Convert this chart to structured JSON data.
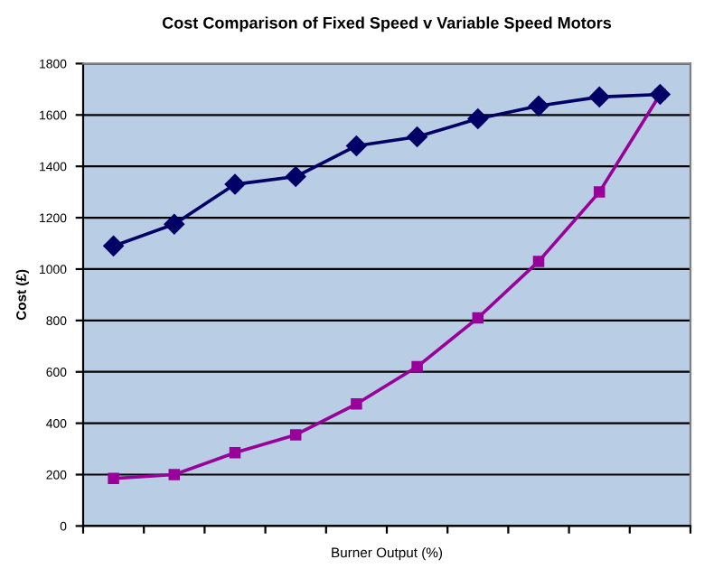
{
  "chart_data": {
    "type": "line",
    "title": "Cost Comparison of Fixed Speed v Variable Speed Motors",
    "xlabel": "Burner Output (%)",
    "ylabel": "Cost (£)",
    "categories": [
      null,
      null,
      null,
      null,
      null,
      null,
      null,
      null,
      null,
      null
    ],
    "series": [
      {
        "color": "#000066",
        "marker": "diamond",
        "values": [
          1090,
          1175,
          1330,
          1360,
          1480,
          1515,
          1585,
          1635,
          1670,
          1680
        ]
      },
      {
        "color": "#990099",
        "marker": "square",
        "values": [
          185,
          200,
          285,
          355,
          475,
          620,
          810,
          1030,
          1300,
          1680
        ]
      }
    ],
    "ylim": [
      0,
      1800
    ],
    "yticks": [
      0,
      200,
      400,
      600,
      800,
      1000,
      1200,
      1400,
      1600,
      1800
    ],
    "grid": "y",
    "legend": false,
    "line_style": "solid"
  }
}
